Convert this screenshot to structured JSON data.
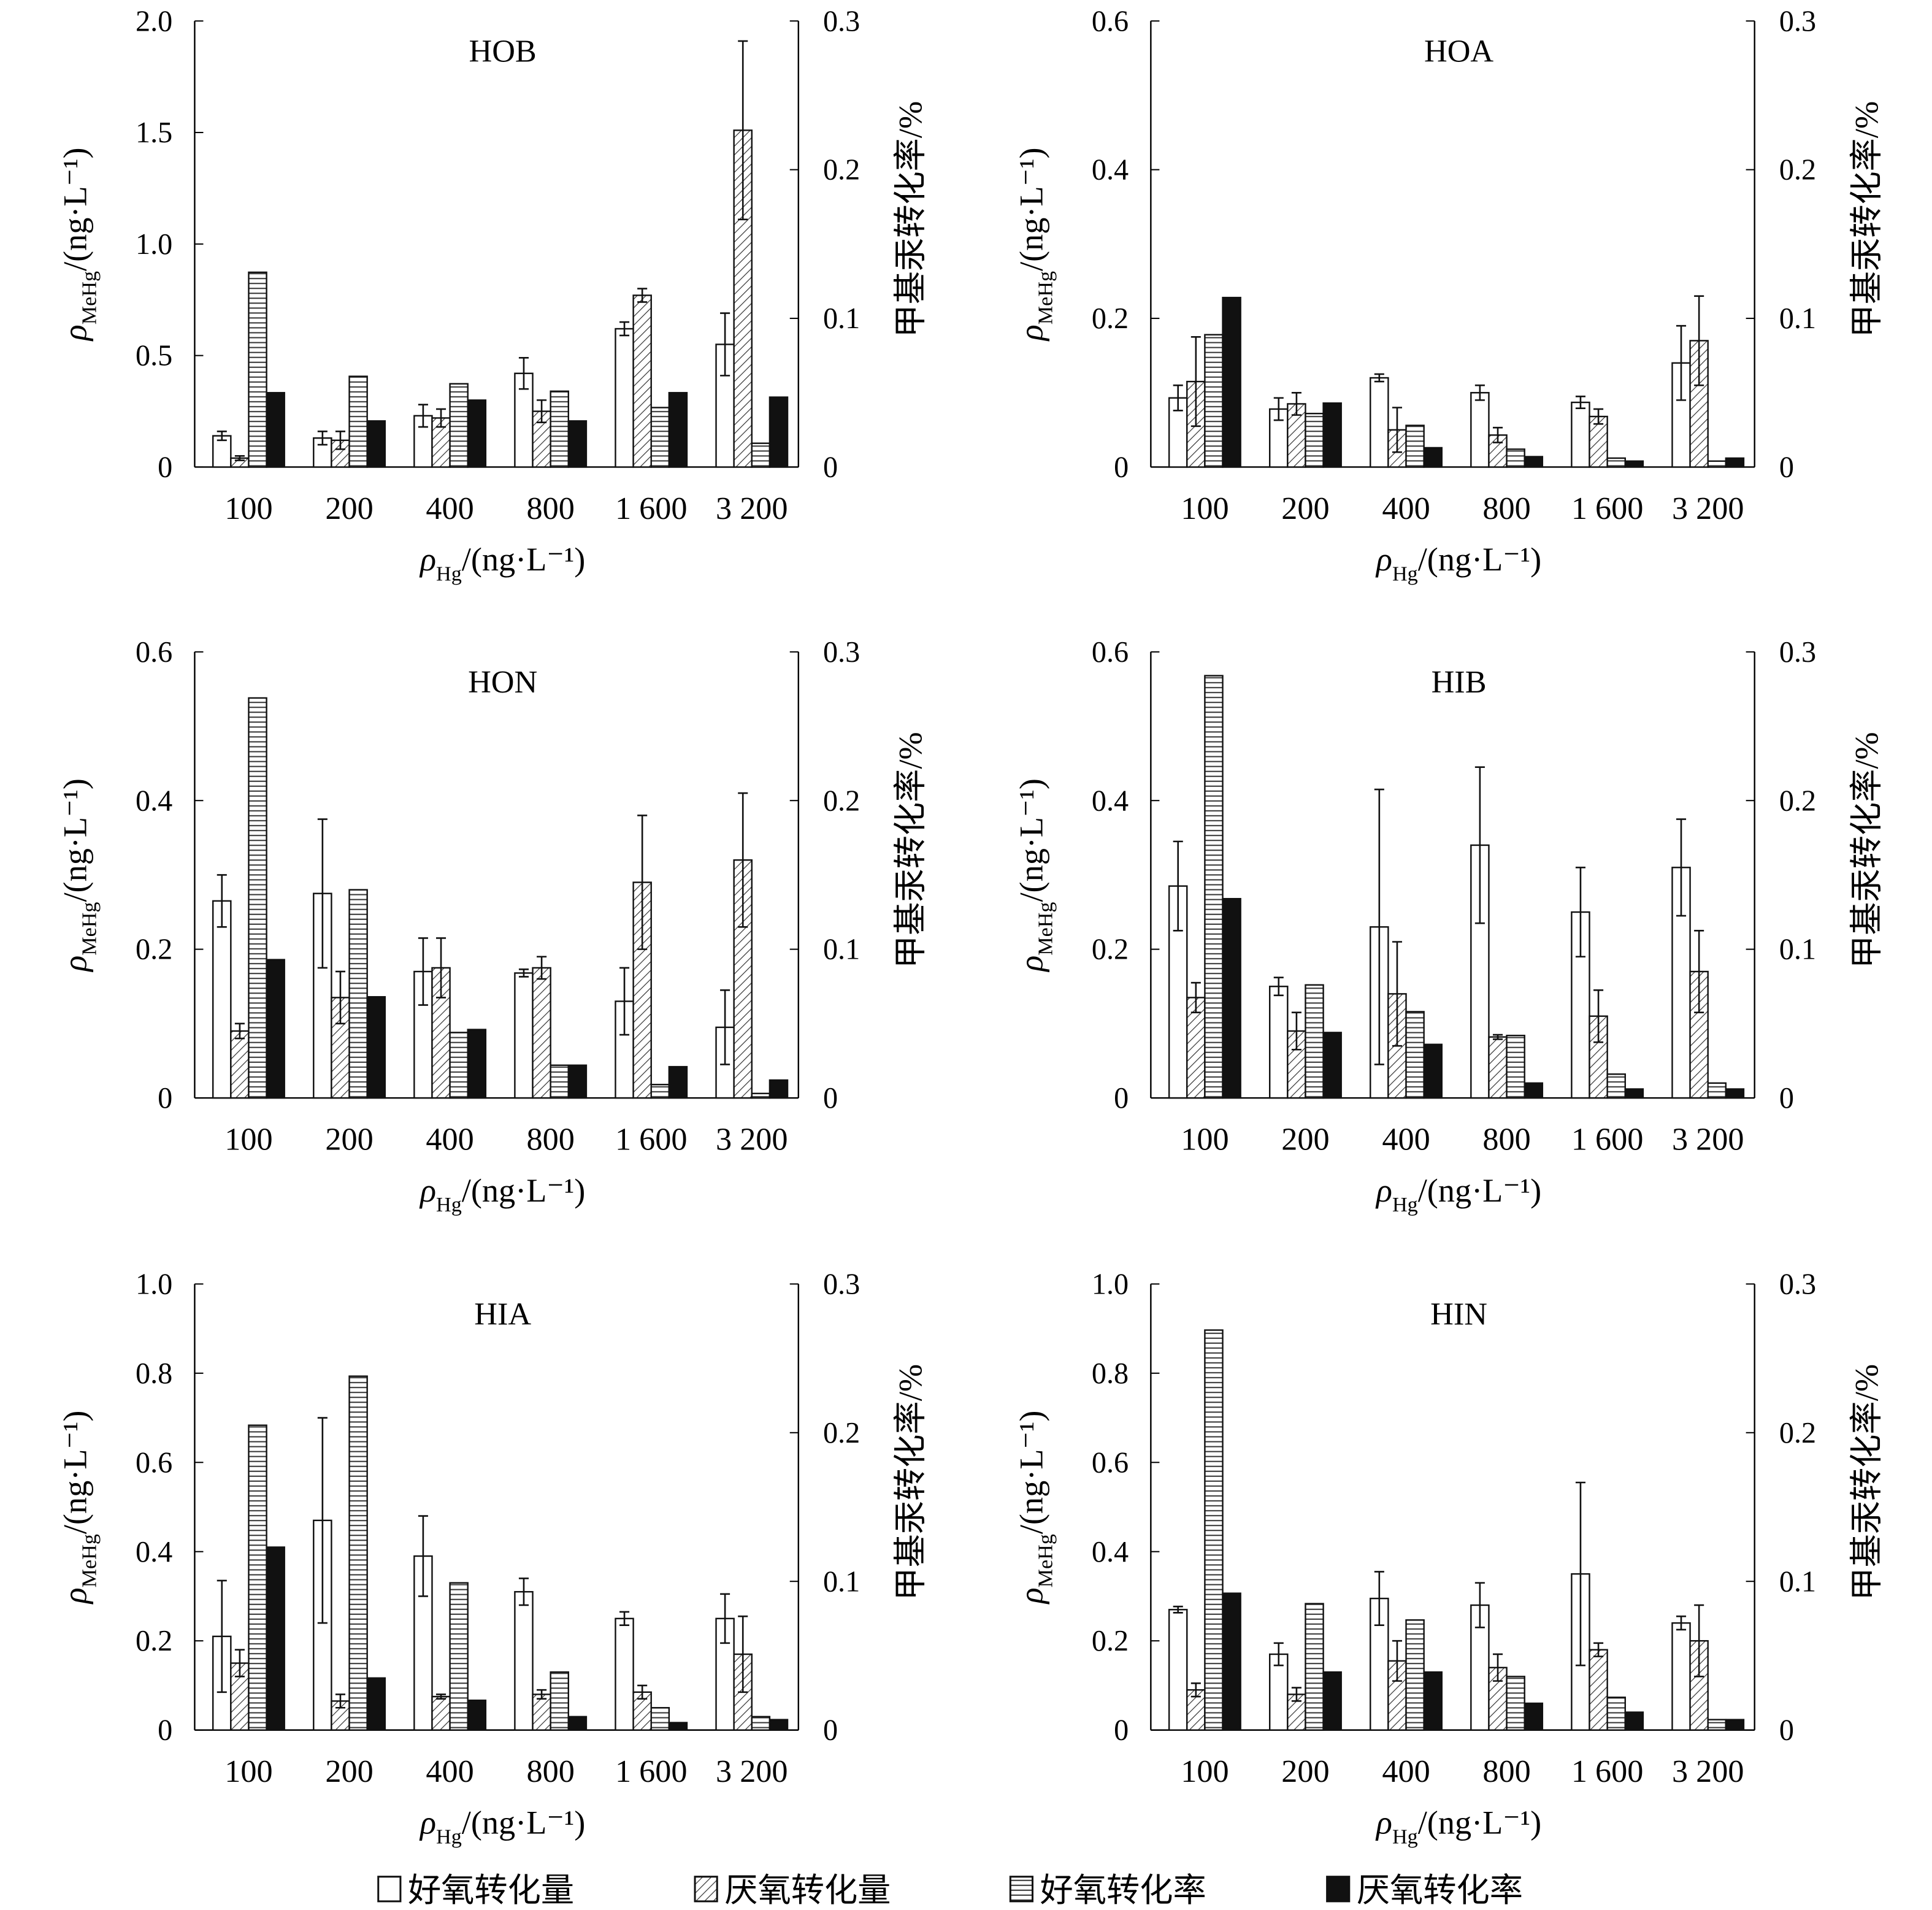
{
  "common": {
    "categories": [
      "100",
      "200",
      "400",
      "800",
      "1 600",
      "3 200"
    ],
    "xlabel_main": "ρ",
    "xlabel_sub": "Hg",
    "xlabel_unit": "/(ng·L⁻¹)",
    "ylabel_main": "ρ",
    "ylabel_sub": "MeHg",
    "ylabel_unit": "/(ng·L⁻¹)",
    "y2label": "甲基汞转化率/%",
    "y2lim": [
      0,
      0.3
    ],
    "y2ticks": [
      "0",
      "0.1",
      "0.2",
      "0.3"
    ]
  },
  "legend": [
    {
      "label": "好氧转化量",
      "pattern": "empty"
    },
    {
      "label": "厌氧转化量",
      "pattern": "diagonal"
    },
    {
      "label": "好氧转化率",
      "pattern": "horizontal"
    },
    {
      "label": "厌氧转化率",
      "pattern": "solid"
    }
  ],
  "chart_data": [
    {
      "type": "bar",
      "title": "HOB",
      "ylim": [
        0,
        2.0
      ],
      "yticks": [
        "0",
        "0.5",
        "1.0",
        "1.5",
        "2.0"
      ],
      "series": [
        {
          "name": "好氧转化量",
          "axis": "left",
          "values": [
            0.14,
            0.13,
            0.23,
            0.42,
            0.62,
            0.55
          ],
          "errors": [
            0.02,
            0.03,
            0.05,
            0.07,
            0.03,
            0.14
          ]
        },
        {
          "name": "厌氧转化量",
          "axis": "left",
          "values": [
            0.04,
            0.12,
            0.22,
            0.25,
            0.77,
            1.51
          ],
          "errors": [
            0.01,
            0.04,
            0.04,
            0.05,
            0.03,
            0.4
          ]
        },
        {
          "name": "好氧转化率",
          "axis": "right",
          "values": [
            0.131,
            0.061,
            0.056,
            0.051,
            0.04,
            0.016
          ]
        },
        {
          "name": "厌氧转化率",
          "axis": "right",
          "values": [
            0.05,
            0.031,
            0.045,
            0.031,
            0.05,
            0.047
          ]
        }
      ]
    },
    {
      "type": "bar",
      "title": "HOA",
      "ylim": [
        0,
        0.6
      ],
      "yticks": [
        "0",
        "0.2",
        "0.4",
        "0.6"
      ],
      "series": [
        {
          "name": "好氧转化量",
          "axis": "left",
          "values": [
            0.093,
            0.078,
            0.12,
            0.1,
            0.087,
            0.14
          ],
          "errors": [
            0.017,
            0.015,
            0.005,
            0.01,
            0.008,
            0.05
          ]
        },
        {
          "name": "厌氧转化量",
          "axis": "left",
          "values": [
            0.115,
            0.085,
            0.05,
            0.043,
            0.068,
            0.17
          ],
          "errors": [
            0.06,
            0.015,
            0.03,
            0.01,
            0.01,
            0.06
          ]
        },
        {
          "name": "好氧转化率",
          "axis": "right",
          "values": [
            0.089,
            0.036,
            0.028,
            0.012,
            0.006,
            0.004
          ]
        },
        {
          "name": "厌氧转化率",
          "axis": "right",
          "values": [
            0.114,
            0.043,
            0.013,
            0.007,
            0.004,
            0.006
          ]
        }
      ]
    },
    {
      "type": "bar",
      "title": "HON",
      "ylim": [
        0,
        0.6
      ],
      "yticks": [
        "0",
        "0.2",
        "0.4",
        "0.6"
      ],
      "series": [
        {
          "name": "好氧转化量",
          "axis": "left",
          "values": [
            0.265,
            0.275,
            0.17,
            0.168,
            0.13,
            0.095
          ],
          "errors": [
            0.035,
            0.1,
            0.045,
            0.005,
            0.045,
            0.05
          ]
        },
        {
          "name": "厌氧转化量",
          "axis": "left",
          "values": [
            0.09,
            0.135,
            0.175,
            0.175,
            0.29,
            0.32
          ],
          "errors": [
            0.01,
            0.035,
            0.04,
            0.015,
            0.09,
            0.09
          ]
        },
        {
          "name": "好氧转化率",
          "axis": "right",
          "values": [
            0.269,
            0.14,
            0.044,
            0.022,
            0.009,
            0.003
          ]
        },
        {
          "name": "厌氧转化率",
          "axis": "right",
          "values": [
            0.093,
            0.068,
            0.046,
            0.022,
            0.021,
            0.012
          ]
        }
      ]
    },
    {
      "type": "bar",
      "title": "HIB",
      "ylim": [
        0,
        0.6
      ],
      "yticks": [
        "0",
        "0.2",
        "0.4",
        "0.6"
      ],
      "series": [
        {
          "name": "好氧转化量",
          "axis": "left",
          "values": [
            0.285,
            0.15,
            0.23,
            0.34,
            0.25,
            0.31
          ],
          "errors": [
            0.06,
            0.012,
            0.185,
            0.105,
            0.06,
            0.065
          ]
        },
        {
          "name": "厌氧转化量",
          "axis": "left",
          "values": [
            0.135,
            0.09,
            0.14,
            0.082,
            0.11,
            0.17
          ],
          "errors": [
            0.02,
            0.025,
            0.07,
            0.003,
            0.035,
            0.055
          ]
        },
        {
          "name": "好氧转化率",
          "axis": "right",
          "values": [
            0.284,
            0.076,
            0.058,
            0.042,
            0.016,
            0.01
          ]
        },
        {
          "name": "厌氧转化率",
          "axis": "right",
          "values": [
            0.134,
            0.044,
            0.036,
            0.01,
            0.006,
            0.006
          ]
        }
      ]
    },
    {
      "type": "bar",
      "title": "HIA",
      "ylim": [
        0,
        1.0
      ],
      "yticks": [
        "0",
        "0.2",
        "0.4",
        "0.6",
        "0.8",
        "1.0"
      ],
      "series": [
        {
          "name": "好氧转化量",
          "axis": "left",
          "values": [
            0.21,
            0.47,
            0.39,
            0.31,
            0.25,
            0.25
          ],
          "errors": [
            0.125,
            0.23,
            0.09,
            0.03,
            0.015,
            0.055
          ]
        },
        {
          "name": "厌氧转化量",
          "axis": "left",
          "values": [
            0.15,
            0.065,
            0.075,
            0.08,
            0.085,
            0.17
          ],
          "errors": [
            0.03,
            0.015,
            0.005,
            0.01,
            0.015,
            0.085
          ]
        },
        {
          "name": "好氧转化率",
          "axis": "right",
          "values": [
            0.205,
            0.238,
            0.099,
            0.039,
            0.015,
            0.009
          ]
        },
        {
          "name": "厌氧转化率",
          "axis": "right",
          "values": [
            0.123,
            0.035,
            0.02,
            0.009,
            0.005,
            0.007
          ]
        }
      ]
    },
    {
      "type": "bar",
      "title": "HIN",
      "ylim": [
        0,
        1.0
      ],
      "yticks": [
        "0",
        "0.2",
        "0.4",
        "0.6",
        "0.8",
        "1.0"
      ],
      "series": [
        {
          "name": "好氧转化量",
          "axis": "left",
          "values": [
            0.27,
            0.17,
            0.295,
            0.28,
            0.35,
            0.24
          ],
          "errors": [
            0.007,
            0.025,
            0.06,
            0.05,
            0.205,
            0.015
          ]
        },
        {
          "name": "厌氧转化量",
          "axis": "left",
          "values": [
            0.09,
            0.08,
            0.155,
            0.14,
            0.18,
            0.2
          ],
          "errors": [
            0.015,
            0.015,
            0.045,
            0.03,
            0.015,
            0.08
          ]
        },
        {
          "name": "好氧转化率",
          "axis": "right",
          "values": [
            0.269,
            0.085,
            0.074,
            0.036,
            0.022,
            0.007
          ]
        },
        {
          "name": "厌氧转化率",
          "axis": "right",
          "values": [
            0.092,
            0.039,
            0.039,
            0.018,
            0.012,
            0.007
          ]
        }
      ]
    }
  ]
}
